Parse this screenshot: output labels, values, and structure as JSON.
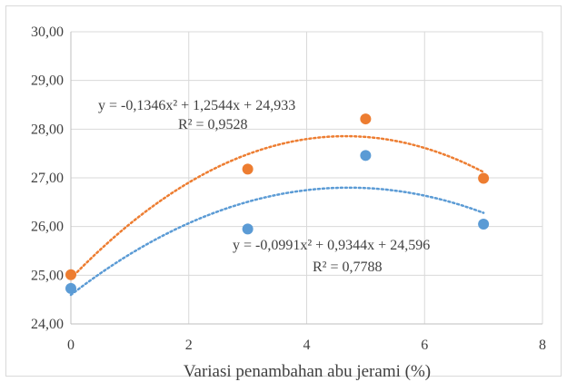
{
  "chart_data": {
    "type": "scatter",
    "xlabel": "Variasi penambahan abu jerami (%)",
    "ylabel": "",
    "xlim": [
      0,
      8
    ],
    "ylim": [
      24,
      30
    ],
    "x_ticks": [
      "0",
      "2",
      "4",
      "6",
      "8"
    ],
    "y_ticks": [
      "24,00",
      "25,00",
      "26,00",
      "27,00",
      "28,00",
      "29,00",
      "30,00"
    ],
    "grid": "vertical and horizontal gridlines",
    "series": [
      {
        "color": "#ed7d31",
        "x": [
          0,
          3,
          5,
          7
        ],
        "y": [
          25.01,
          27.18,
          28.21,
          26.99
        ],
        "trendline": {
          "type": "polynomial",
          "order": 2,
          "a": -0.1346,
          "b": 1.2544,
          "c": 24.933
        },
        "equation": "y = -0,1346x² + 1,2544x + 24,933",
        "r_squared": "R² = 0,9528"
      },
      {
        "color": "#5b9bd5",
        "x": [
          0,
          3,
          5,
          7
        ],
        "y": [
          24.73,
          25.95,
          27.46,
          26.05
        ],
        "trendline": {
          "type": "polynomial",
          "order": 2,
          "a": -0.0991,
          "b": 0.9344,
          "c": 24.596
        },
        "equation": "y = -0,0991x² + 0,9344x + 24,596",
        "r_squared": "R² = 0,7788"
      }
    ]
  }
}
